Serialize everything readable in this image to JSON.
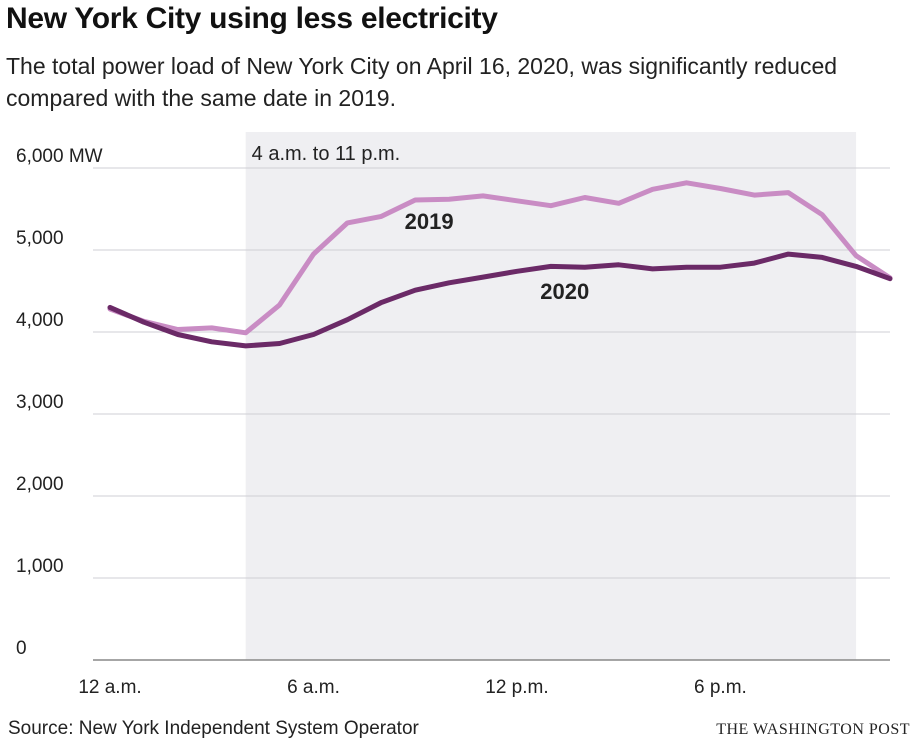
{
  "header": {
    "title": "New York City using less electricity",
    "subtitle": "The total power load of New York City on April 16, 2020, was significantly reduced compared with the same date in 2019."
  },
  "footer": {
    "source": "Source: New York Independent System Operator",
    "credit": "THE WASHINGTON POST"
  },
  "chart_data": {
    "type": "line",
    "title": "New York City using less electricity",
    "subtitle": "The total power load of New York City on April 16, 2020, was significantly reduced compared with the same date in 2019.",
    "x": [
      0,
      1,
      2,
      3,
      4,
      5,
      6,
      7,
      8,
      9,
      10,
      11,
      12,
      13,
      14,
      15,
      16,
      17,
      18,
      19,
      20,
      21,
      22,
      23
    ],
    "xlim": [
      0,
      23
    ],
    "ylim": [
      0,
      6000
    ],
    "y_ticks": [
      {
        "value": 0,
        "label": "0"
      },
      {
        "value": 1000,
        "label": "1,000"
      },
      {
        "value": 2000,
        "label": "2,000"
      },
      {
        "value": 3000,
        "label": "3,000"
      },
      {
        "value": 4000,
        "label": "4,000"
      },
      {
        "value": 5000,
        "label": "5,000"
      },
      {
        "value": 6000,
        "label": "6,000 MW"
      }
    ],
    "x_ticks": [
      {
        "value": 0,
        "label": "12 a.m."
      },
      {
        "value": 6,
        "label": "6 a.m."
      },
      {
        "value": 12,
        "label": "12 p.m."
      },
      {
        "value": 18,
        "label": "6 p.m."
      }
    ],
    "highlight": {
      "start": 4,
      "end": 22,
      "label": "4 a.m. to 11 p.m."
    },
    "grid": true,
    "series": [
      {
        "name": "2019",
        "color": "#c98cc4",
        "values": [
          4280,
          4130,
          4030,
          4050,
          3990,
          4330,
          4950,
          5330,
          5410,
          5610,
          5620,
          5660,
          5600,
          5540,
          5640,
          5570,
          5740,
          5820,
          5750,
          5670,
          5700,
          5430,
          4930,
          4660
        ]
      },
      {
        "name": "2020",
        "color": "#6b2a67",
        "values": [
          4300,
          4120,
          3970,
          3880,
          3830,
          3860,
          3970,
          4150,
          4360,
          4510,
          4600,
          4670,
          4740,
          4800,
          4790,
          4820,
          4770,
          4790,
          4790,
          4840,
          4950,
          4910,
          4800,
          4650
        ]
      }
    ]
  }
}
